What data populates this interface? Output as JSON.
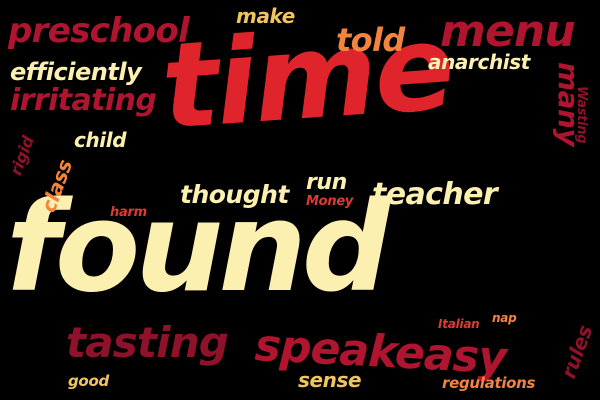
{
  "word_cloud": {
    "background": "#000000",
    "palette": {
      "red": "#e0242b",
      "cream": "#fbf0b0",
      "orange": "#f2843e",
      "crimson": "#b01530",
      "maroon": "#8e1229",
      "light_red": "#dd3a32",
      "gold": "#f0c460"
    },
    "words": {
      "found": "found",
      "time": "time",
      "speakeasy": "speakeasy",
      "tasting": "tasting",
      "menu": "menu",
      "preschool": "preschool",
      "teacher": "teacher",
      "thought": "thought",
      "told": "told",
      "irritating": "irritating",
      "efficiently": "efficiently",
      "run": "run",
      "make": "make",
      "anarchist": "anarchist",
      "many": "many",
      "class": "class",
      "child": "child",
      "sense": "sense",
      "rules": "rules",
      "rigid": "rigid",
      "wasting": "Wasting",
      "money": "Money",
      "harm": "harm",
      "italian": "Italian",
      "nap": "nap",
      "good": "good",
      "regulations": "regulations"
    }
  }
}
